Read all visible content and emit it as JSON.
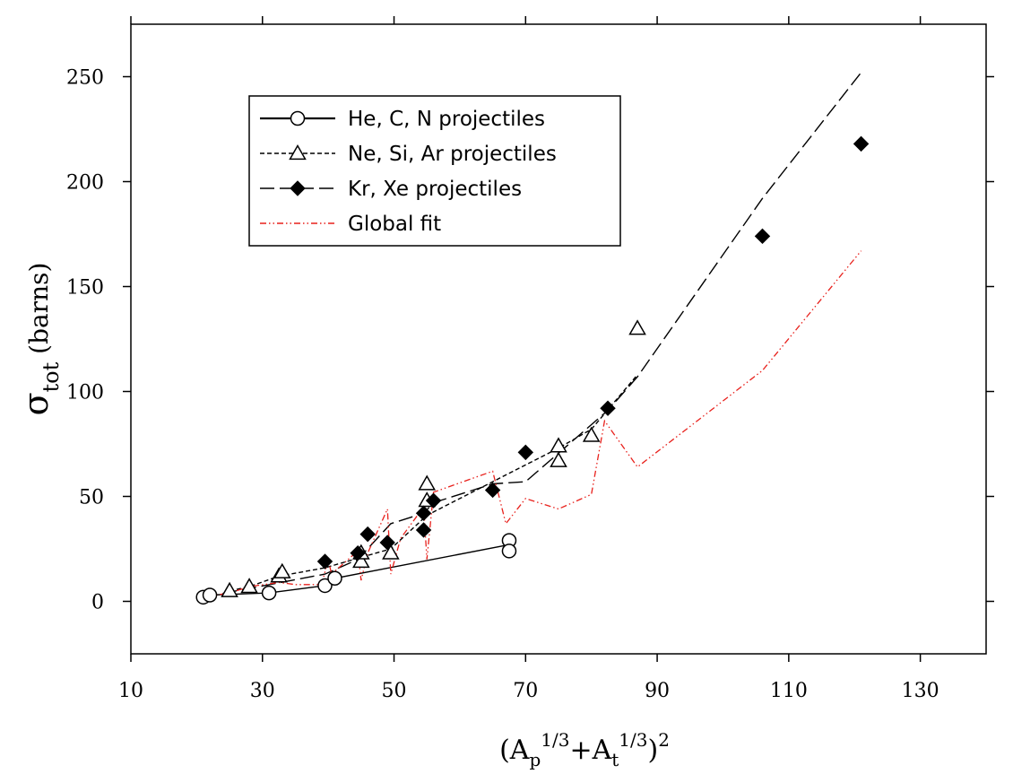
{
  "chart_data": {
    "type": "line",
    "xlabel": {
      "open": "(A",
      "sub1": "p",
      "sup1": "1/3",
      "plus": "+A",
      "sub2": "t",
      "sup2": "1/3",
      "close": ")",
      "sup3": "2"
    },
    "ylabel": {
      "main": "σ",
      "sub": "tot",
      "rest": " (barns)"
    },
    "xlim": [
      10,
      140
    ],
    "ylim": [
      -25,
      275
    ],
    "xticks": [
      10,
      30,
      50,
      70,
      90,
      110,
      130
    ],
    "yticks": [
      0,
      50,
      100,
      150,
      200,
      250
    ],
    "grid": false,
    "legend_position": "top-left",
    "series": [
      {
        "name": "He, C, N projectiles",
        "style": "solid",
        "marker": "open-circle",
        "color": "#000000",
        "line": [
          [
            21,
            2
          ],
          [
            22,
            3
          ],
          [
            31,
            4
          ],
          [
            39.5,
            7.5
          ],
          [
            41,
            11
          ],
          [
            67.5,
            27
          ]
        ],
        "points": [
          [
            21,
            2
          ],
          [
            22,
            3
          ],
          [
            31,
            4
          ],
          [
            39.5,
            7.5
          ],
          [
            41,
            11
          ],
          [
            67.5,
            29
          ],
          [
            67.5,
            24
          ]
        ]
      },
      {
        "name": "Ne, Si, Ar projectiles",
        "style": "short-dash",
        "marker": "open-triangle",
        "color": "#000000",
        "line": [
          [
            25,
            5
          ],
          [
            28,
            7
          ],
          [
            32.5,
            12
          ],
          [
            39.5,
            16
          ],
          [
            45,
            21
          ],
          [
            49.5,
            25
          ],
          [
            55,
            41
          ],
          [
            65,
            57
          ],
          [
            75,
            73
          ],
          [
            80,
            82
          ],
          [
            87,
            108
          ]
        ],
        "points": [
          [
            25,
            5
          ],
          [
            28,
            7
          ],
          [
            32.5,
            12
          ],
          [
            33,
            14
          ],
          [
            45,
            19
          ],
          [
            45,
            23
          ],
          [
            49.5,
            23
          ],
          [
            55,
            56
          ],
          [
            55,
            48
          ],
          [
            75,
            67
          ],
          [
            75,
            74
          ],
          [
            80,
            79
          ],
          [
            87,
            130
          ]
        ]
      },
      {
        "name": "Kr, Xe projectiles",
        "style": "long-dash",
        "marker": "filled-diamond",
        "color": "#000000",
        "line": [
          [
            21,
            2
          ],
          [
            39.5,
            13
          ],
          [
            44.5,
            20
          ],
          [
            49.5,
            37
          ],
          [
            54.5,
            42
          ],
          [
            56,
            47
          ],
          [
            65,
            56
          ],
          [
            70,
            57
          ],
          [
            82.5,
            91
          ],
          [
            87,
            107
          ],
          [
            106,
            192
          ],
          [
            121,
            252
          ]
        ],
        "points": [
          [
            39.5,
            19
          ],
          [
            44.5,
            23
          ],
          [
            46,
            32
          ],
          [
            49,
            28
          ],
          [
            54.5,
            34
          ],
          [
            54.5,
            42
          ],
          [
            56,
            48
          ],
          [
            65,
            53
          ],
          [
            70,
            71
          ],
          [
            82.5,
            92
          ],
          [
            106,
            174
          ],
          [
            121,
            218
          ]
        ]
      },
      {
        "name": "Global fit",
        "style": "dash-dot-dot",
        "marker": "none",
        "color": "#e8211c",
        "line": [
          [
            21,
            2
          ],
          [
            25,
            4
          ],
          [
            28,
            7
          ],
          [
            32.5,
            9
          ],
          [
            35,
            8
          ],
          [
            39,
            8
          ],
          [
            40,
            20
          ],
          [
            40.5,
            13
          ],
          [
            44.5,
            24
          ],
          [
            45,
            10
          ],
          [
            46,
            23
          ],
          [
            49,
            44
          ],
          [
            49.5,
            13
          ],
          [
            51,
            30
          ],
          [
            54.5,
            45
          ],
          [
            55,
            20
          ],
          [
            56,
            52
          ],
          [
            65,
            62
          ],
          [
            67,
            37
          ],
          [
            70,
            49
          ],
          [
            75,
            44
          ],
          [
            80,
            51
          ],
          [
            82,
            86
          ],
          [
            87,
            64
          ],
          [
            106,
            110
          ],
          [
            121,
            167
          ]
        ],
        "points": []
      }
    ]
  }
}
